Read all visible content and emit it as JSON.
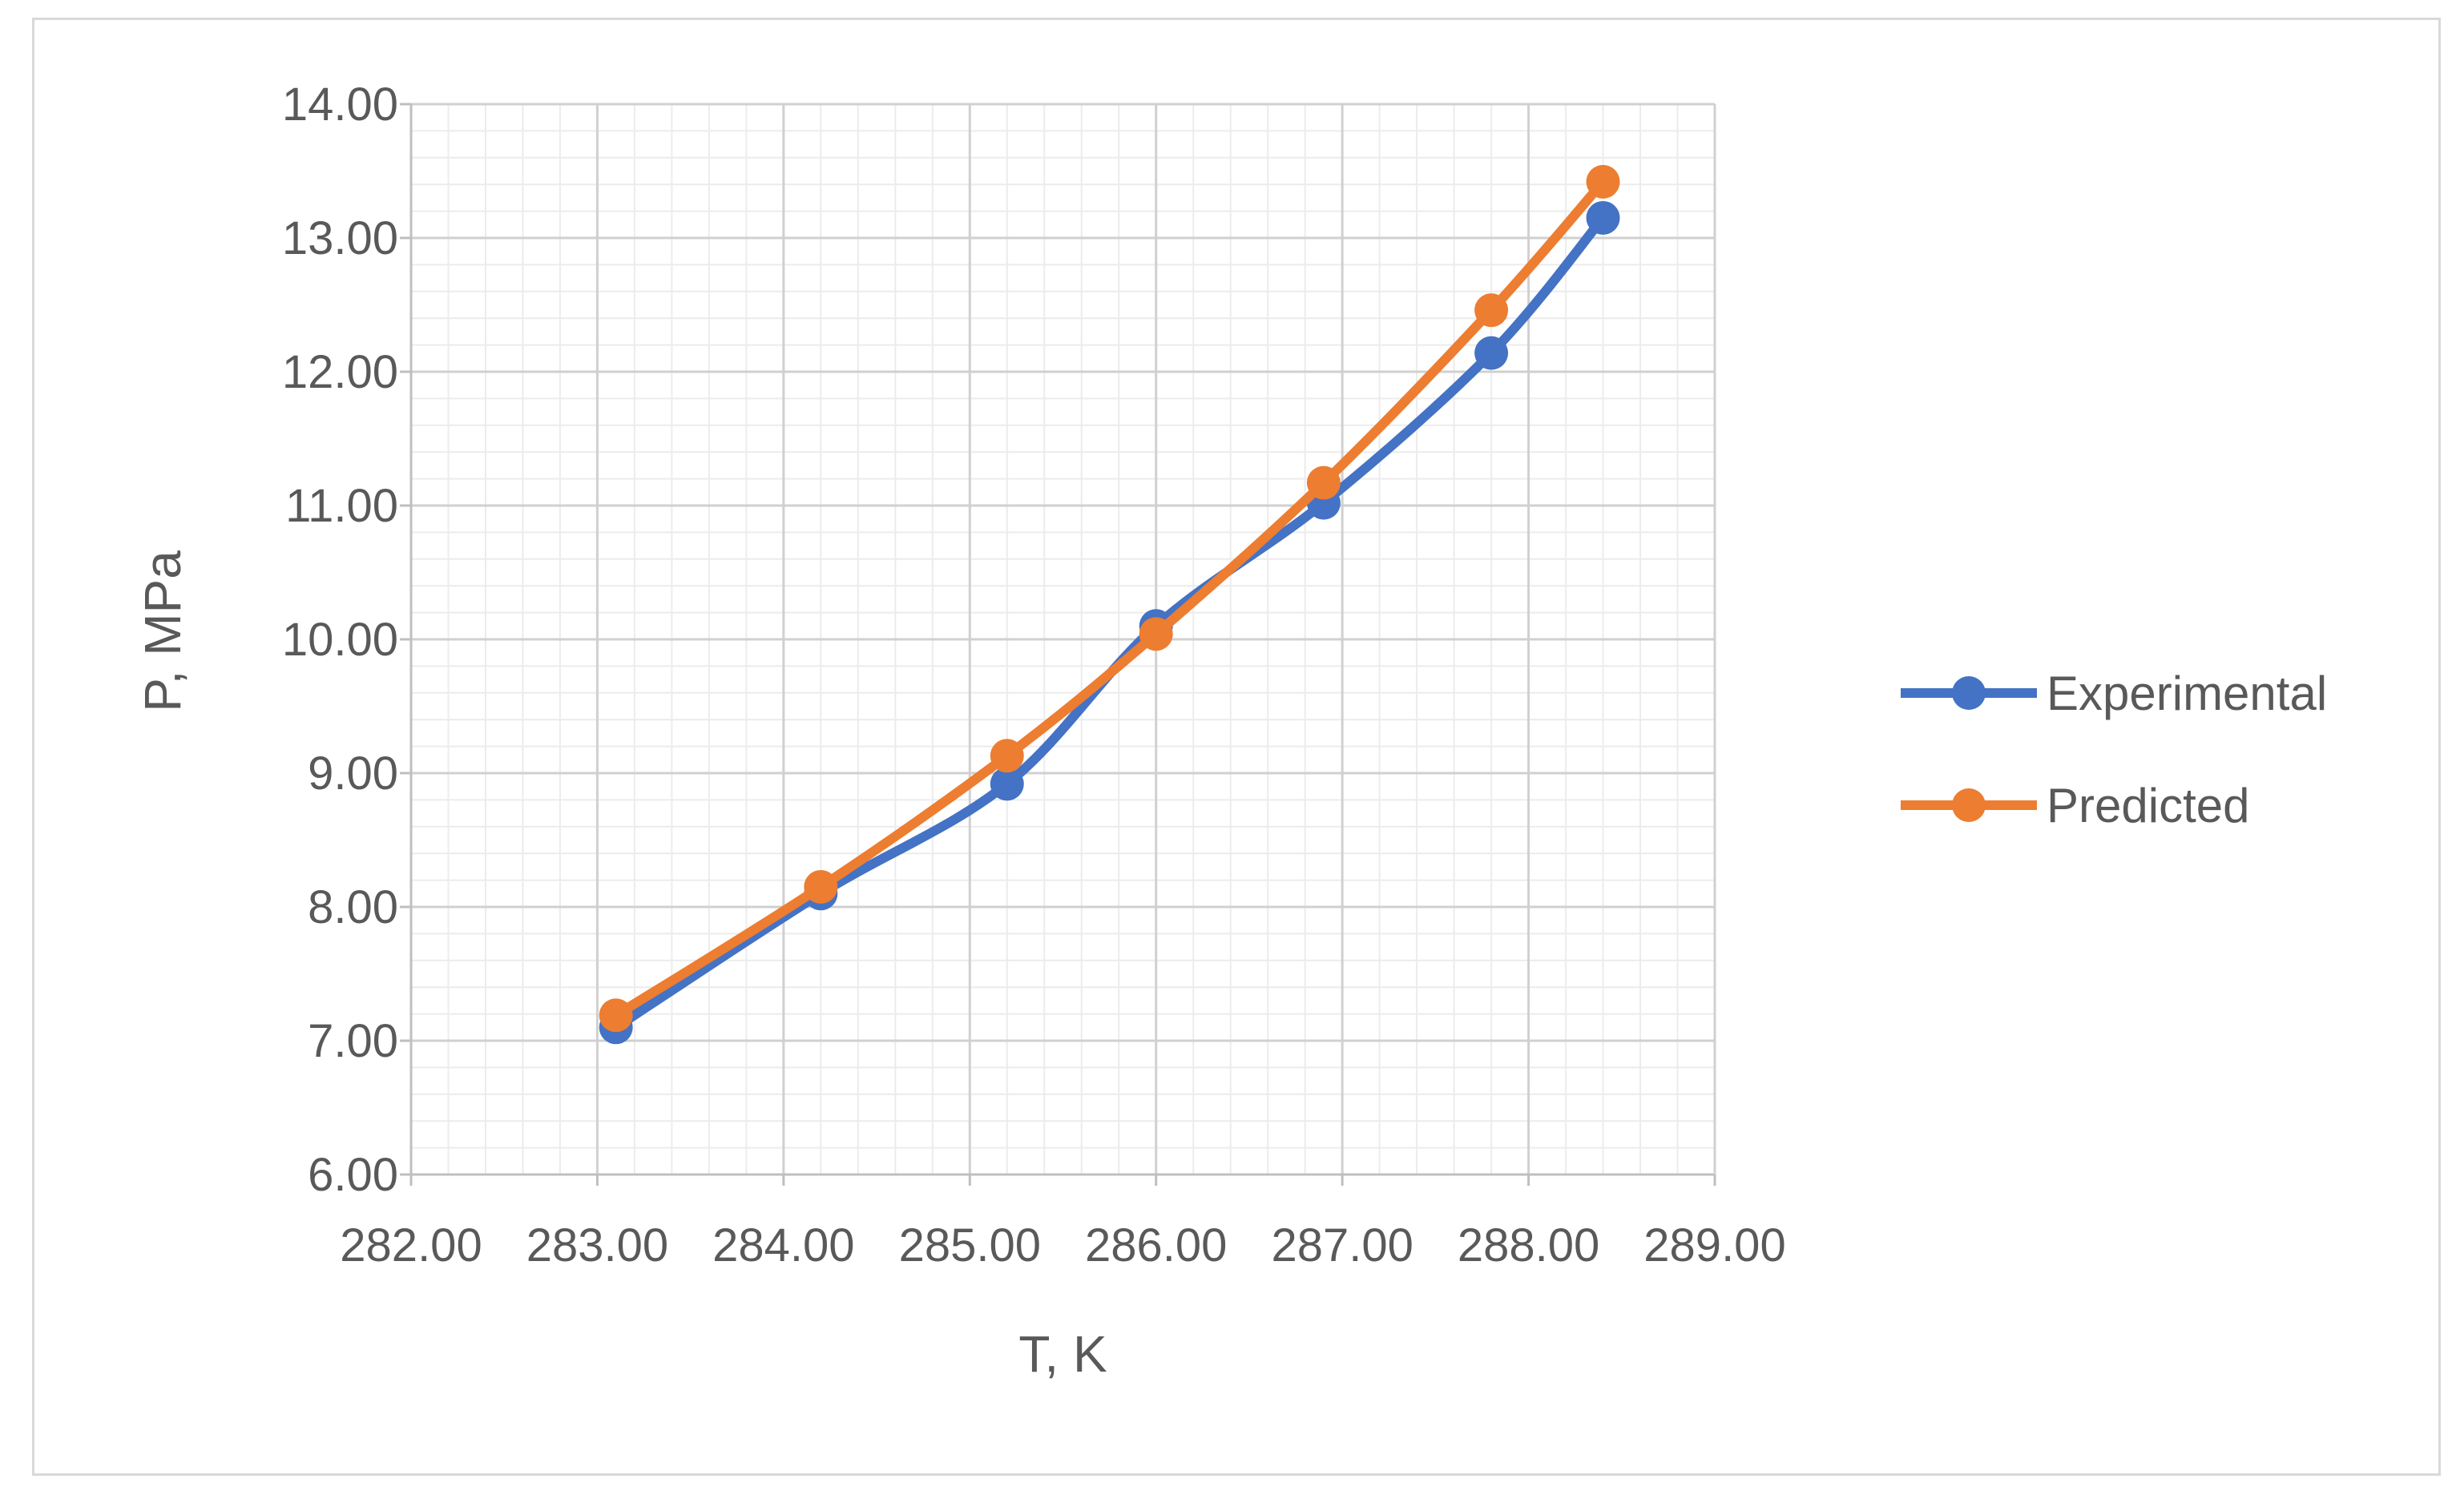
{
  "chart_data": {
    "type": "line",
    "xlabel": "T, K",
    "ylabel": "P, MPa",
    "xlim": [
      282,
      289
    ],
    "ylim": [
      6,
      14
    ],
    "x_ticks": [
      "282.00",
      "283.00",
      "284.00",
      "285.00",
      "286.00",
      "287.00",
      "288.00",
      "289.00"
    ],
    "y_ticks": [
      "6.00",
      "7.00",
      "8.00",
      "9.00",
      "10.00",
      "11.00",
      "12.00",
      "13.00",
      "14.00"
    ],
    "grid": "major and minor",
    "legend_position": "right",
    "series": [
      {
        "name": "Experimental",
        "color": "#4472c4",
        "points": [
          {
            "x": 283.1,
            "y": 7.1
          },
          {
            "x": 284.2,
            "y": 8.1
          },
          {
            "x": 285.2,
            "y": 8.92
          },
          {
            "x": 286.0,
            "y": 10.1
          },
          {
            "x": 286.9,
            "y": 11.02
          },
          {
            "x": 287.8,
            "y": 12.14
          },
          {
            "x": 288.4,
            "y": 13.15
          }
        ]
      },
      {
        "name": "Predicted",
        "color": "#ed7d31",
        "points": [
          {
            "x": 283.1,
            "y": 7.19
          },
          {
            "x": 284.2,
            "y": 8.15
          },
          {
            "x": 285.2,
            "y": 9.13
          },
          {
            "x": 286.0,
            "y": 10.04
          },
          {
            "x": 286.9,
            "y": 11.17
          },
          {
            "x": 287.8,
            "y": 12.46
          },
          {
            "x": 288.4,
            "y": 13.42
          }
        ]
      }
    ]
  }
}
